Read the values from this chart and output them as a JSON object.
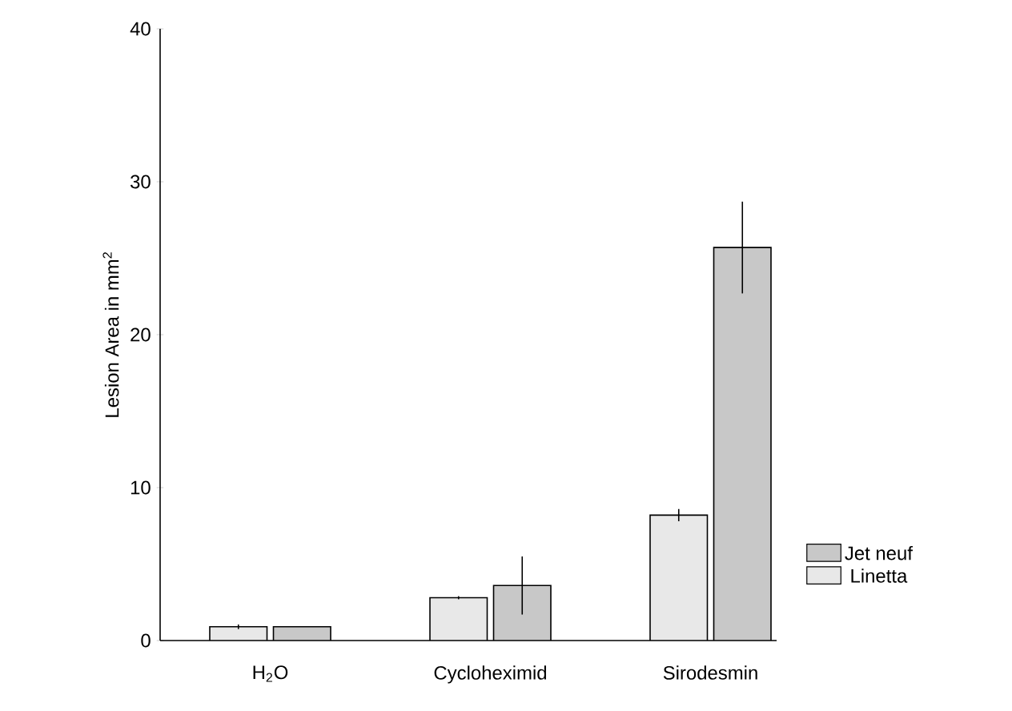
{
  "chart_data": {
    "type": "bar",
    "ylabel": "Lesion Area in mm$^{2}$",
    "categories": [
      "H$_{2}$O",
      "Cycloheximid",
      "Sirodesmin"
    ],
    "series": [
      {
        "name": "Linetta",
        "color": "#e8e8e8",
        "values": [
          0.9,
          2.8,
          8.2
        ],
        "errors": [
          0.15,
          0.1,
          0.4
        ]
      },
      {
        "name": "Jet neuf",
        "color": "#c8c8c8",
        "values": [
          0.9,
          3.6,
          25.7
        ],
        "errors": [
          null,
          1.9,
          3.0
        ]
      }
    ],
    "ylim": [
      0,
      40
    ],
    "yticks": [
      0,
      10,
      20,
      30,
      40
    ],
    "grid": false,
    "legend": "bottom right"
  }
}
